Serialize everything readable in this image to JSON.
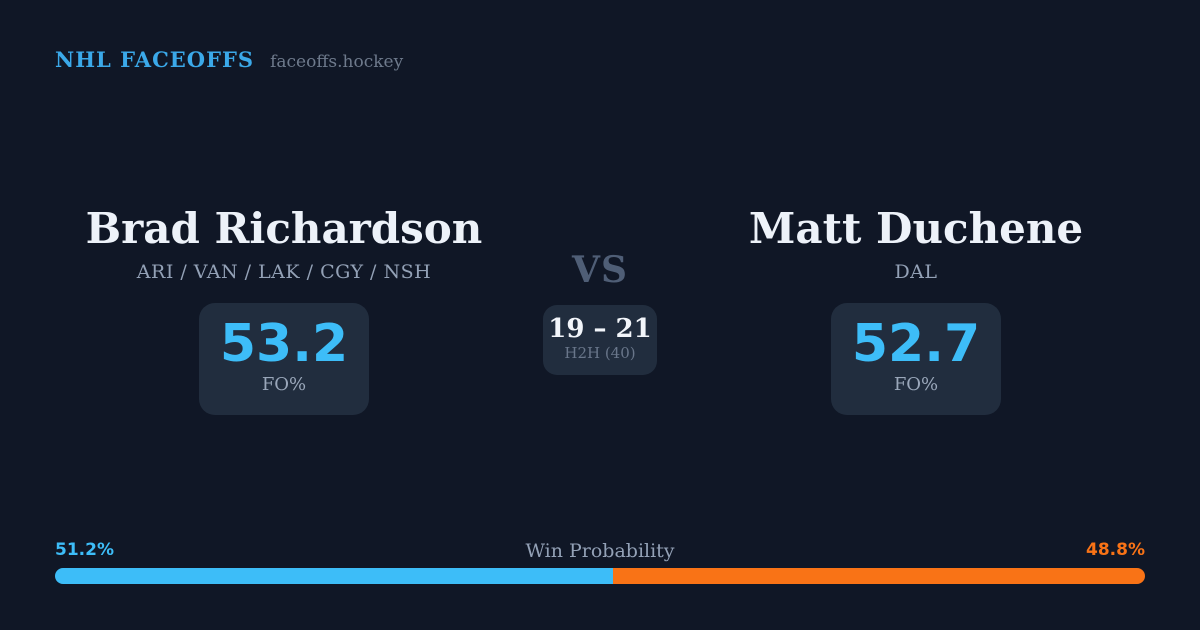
{
  "header": {
    "brand": "NHL FACEOFFS",
    "site": "faceoffs.hockey"
  },
  "players": {
    "left": {
      "name": "Brad Richardson",
      "teams": "ARI / VAN / LAK / CGY / NSH",
      "stat_value": "53.2",
      "stat_label": "FO%",
      "win_pct_label": "51.2%",
      "win_pct": 51.2,
      "bar_color": "#3dbdf8"
    },
    "right": {
      "name": "Matt Duchene",
      "teams": "DAL",
      "stat_value": "52.7",
      "stat_label": "FO%",
      "win_pct_label": "48.8%",
      "win_pct": 48.8,
      "bar_color": "#f97316"
    }
  },
  "matchup": {
    "vs": "VS",
    "h2h_score": "19 – 21",
    "h2h_label": "H2H (40)"
  },
  "win_bar": {
    "label": "Win Probability",
    "left_pct": 51.2,
    "right_pct": 48.8
  },
  "colors": {
    "background": "#101726",
    "panel": "#212d3e",
    "accent_blue": "#3dbdf8",
    "accent_orange": "#f97316",
    "brand_blue": "#3ba9e9",
    "text_primary": "#edf2f9",
    "text_muted": "#93a1b6"
  }
}
